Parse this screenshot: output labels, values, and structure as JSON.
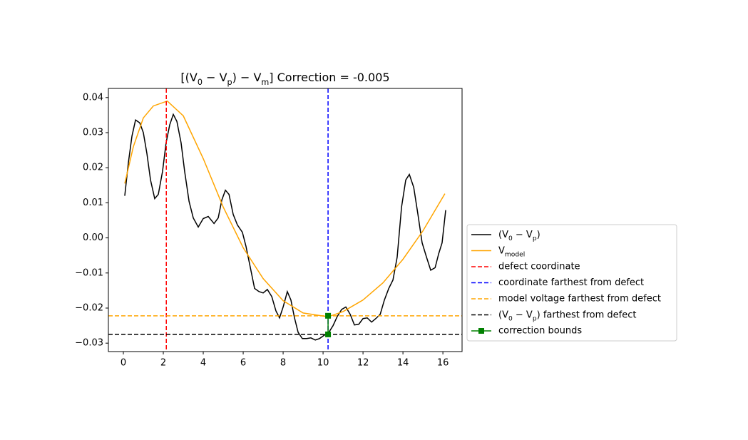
{
  "chart_data": {
    "type": "line",
    "title": "[(V_0 − V_p) − V_m] Correction = -0.005",
    "xlim": [
      -0.75,
      16.96
    ],
    "ylim": [
      -0.0324,
      0.0426
    ],
    "xticks": [
      0,
      2,
      4,
      6,
      8,
      10,
      12,
      14,
      16
    ],
    "yticks": [
      {
        "value": -0.03,
        "label": "−0.03"
      },
      {
        "value": -0.02,
        "label": "−0.02"
      },
      {
        "value": -0.01,
        "label": "−0.01"
      },
      {
        "value": 0,
        "label": "0.00"
      },
      0.01,
      0.02,
      0.03,
      0.04
    ],
    "legend": "outside right",
    "series": [
      {
        "name": "(V_0 − V_p)",
        "kind": "line",
        "style": "solid",
        "color": "#000000",
        "x": [
          0.07,
          0.25,
          0.43,
          0.61,
          0.82,
          1.0,
          1.18,
          1.36,
          1.57,
          1.75,
          1.96,
          2.14,
          2.32,
          2.5,
          2.68,
          2.89,
          3.07,
          3.29,
          3.5,
          3.75,
          4.0,
          4.25,
          4.54,
          4.75,
          4.93,
          5.11,
          5.29,
          5.5,
          5.71,
          5.96,
          6.14,
          6.36,
          6.57,
          6.79,
          7.0,
          7.21,
          7.43,
          7.64,
          7.82,
          8.0,
          8.21,
          8.39,
          8.57,
          8.75,
          8.96,
          9.18,
          9.39,
          9.61,
          9.82,
          10.07,
          10.29,
          10.5,
          10.71,
          10.93,
          11.14,
          11.36,
          11.57,
          11.79,
          12.0,
          12.21,
          12.43,
          12.64,
          12.86,
          13.07,
          13.29,
          13.5,
          13.71,
          13.93,
          14.14,
          14.32,
          14.54,
          14.75,
          14.96,
          15.18,
          15.39,
          15.61,
          15.79,
          15.96,
          16.14
        ],
        "values": [
          0.012,
          0.0214,
          0.029,
          0.0336,
          0.0328,
          0.03,
          0.024,
          0.0165,
          0.0112,
          0.0124,
          0.0189,
          0.0271,
          0.0322,
          0.0352,
          0.0332,
          0.0271,
          0.0189,
          0.0104,
          0.0057,
          0.0031,
          0.0055,
          0.0061,
          0.0041,
          0.0057,
          0.0108,
          0.0136,
          0.0124,
          0.0067,
          0.0037,
          0.0016,
          -0.0024,
          -0.0085,
          -0.0144,
          -0.0153,
          -0.0157,
          -0.0147,
          -0.0167,
          -0.0208,
          -0.0228,
          -0.0197,
          -0.0153,
          -0.0177,
          -0.0228,
          -0.0269,
          -0.0287,
          -0.0287,
          -0.0285,
          -0.0291,
          -0.0287,
          -0.0277,
          -0.0269,
          -0.025,
          -0.0224,
          -0.0204,
          -0.0197,
          -0.0218,
          -0.0248,
          -0.0246,
          -0.023,
          -0.0228,
          -0.024,
          -0.023,
          -0.0218,
          -0.0177,
          -0.0144,
          -0.012,
          -0.0055,
          0.0088,
          0.0165,
          0.0181,
          0.0144,
          0.0067,
          -0.0014,
          -0.0055,
          -0.0092,
          -0.0085,
          -0.0045,
          -0.0014,
          0.0079
        ]
      },
      {
        "name": "V_{model}",
        "kind": "line",
        "style": "solid",
        "color": "#ffa500",
        "x": [
          0.07,
          0.5,
          1.0,
          1.5,
          2.2,
          3.0,
          4.0,
          5.0,
          6.0,
          7.0,
          8.0,
          9.0,
          10.25,
          11.0,
          12.0,
          13.0,
          14.0,
          15.0,
          16.1
        ],
        "values": [
          0.0155,
          0.026,
          0.0342,
          0.0376,
          0.039,
          0.0348,
          0.0226,
          0.0088,
          -0.0028,
          -0.0116,
          -0.0179,
          -0.0214,
          -0.0225,
          -0.021,
          -0.0177,
          -0.0128,
          -0.0061,
          0.002,
          0.0126
        ]
      },
      {
        "name": "defect coordinate",
        "kind": "vline",
        "style": "dashed",
        "color": "#ff0000",
        "value": 2.15
      },
      {
        "name": "coordinate farthest from defect",
        "kind": "vline",
        "style": "dashed",
        "color": "#0000ff",
        "value": 10.25
      },
      {
        "name": "model voltage farthest from defect",
        "kind": "hline",
        "style": "dashed",
        "color": "#ffa500",
        "value": -0.0222
      },
      {
        "name": "(V_0 − V_p) farthest from defect",
        "kind": "hline",
        "style": "dashed",
        "color": "#000000",
        "value": -0.0275
      },
      {
        "name": "correction bounds",
        "kind": "markers",
        "style": "solid",
        "color": "#008000",
        "x": [
          10.25,
          10.25
        ],
        "values": [
          -0.0275,
          -0.0222
        ]
      }
    ]
  }
}
